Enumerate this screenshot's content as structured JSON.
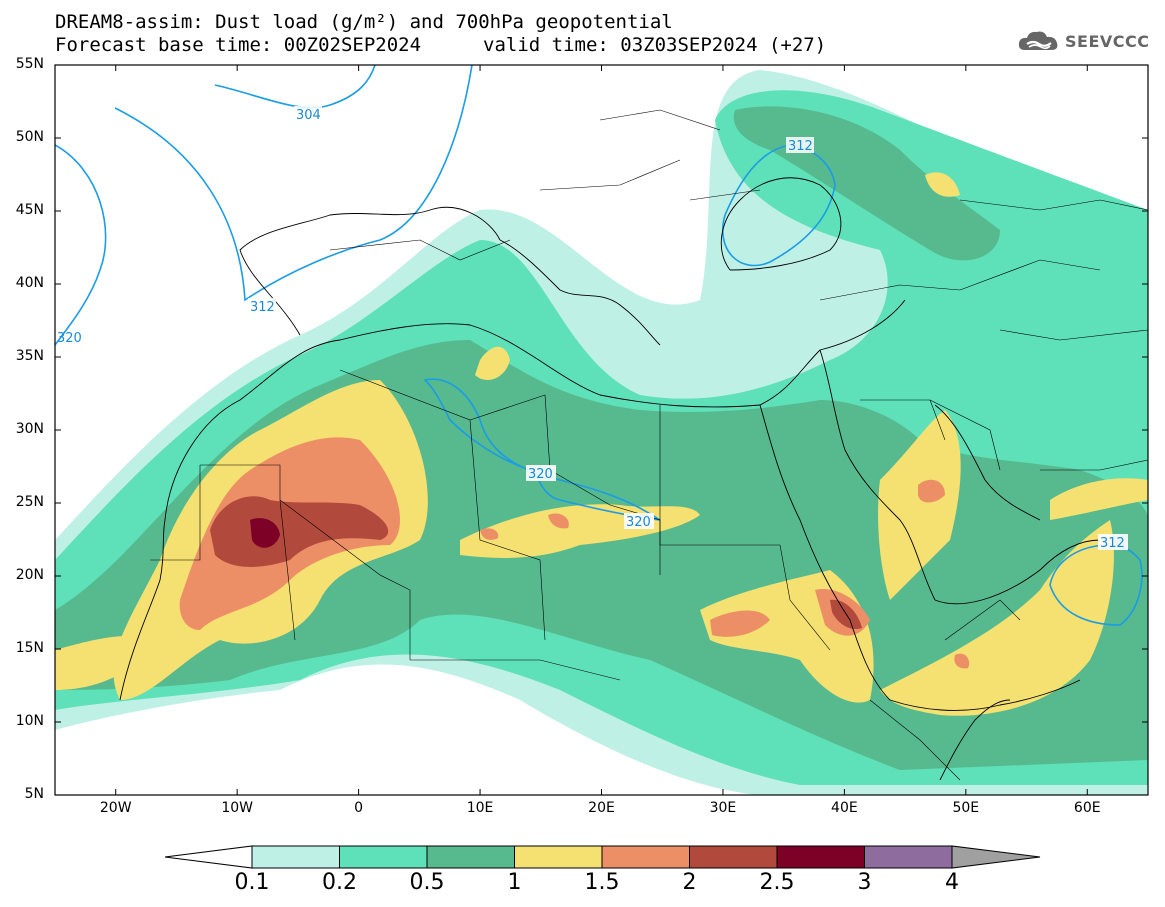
{
  "header": {
    "title_line1": "DREAM8-assim: Dust load (g/m²) and 700hPa geopotential",
    "title_line2": "Forecast base time: 00Z02SEP2024",
    "valid_time": "valid time: 03Z03SEP2024 (+27)",
    "logo_text": "SEEVCCC",
    "logo_icon": "cloud-icon"
  },
  "axes": {
    "lat_labels": [
      "55N",
      "50N",
      "45N",
      "40N",
      "35N",
      "30N",
      "25N",
      "20N",
      "15N",
      "10N",
      "5N"
    ],
    "lon_labels": [
      "20W",
      "10W",
      "0",
      "10E",
      "20E",
      "30E",
      "40E",
      "50E",
      "60E"
    ]
  },
  "contour_labels": [
    "304",
    "312",
    "312",
    "320",
    "320",
    "312",
    "320"
  ],
  "colorbar": {
    "labels": [
      "0.1",
      "0.2",
      "0.5",
      "1",
      "1.5",
      "2",
      "2.5",
      "3",
      "4"
    ],
    "colors": [
      "#bff0e6",
      "#5ee0b8",
      "#57b98e",
      "#f5e072",
      "#ed8f66",
      "#b14a3d",
      "#7d0027",
      "#8e6d9e"
    ],
    "lower_arrow_color": "#ffffff",
    "upper_arrow_color": "#a0a0a0"
  }
}
